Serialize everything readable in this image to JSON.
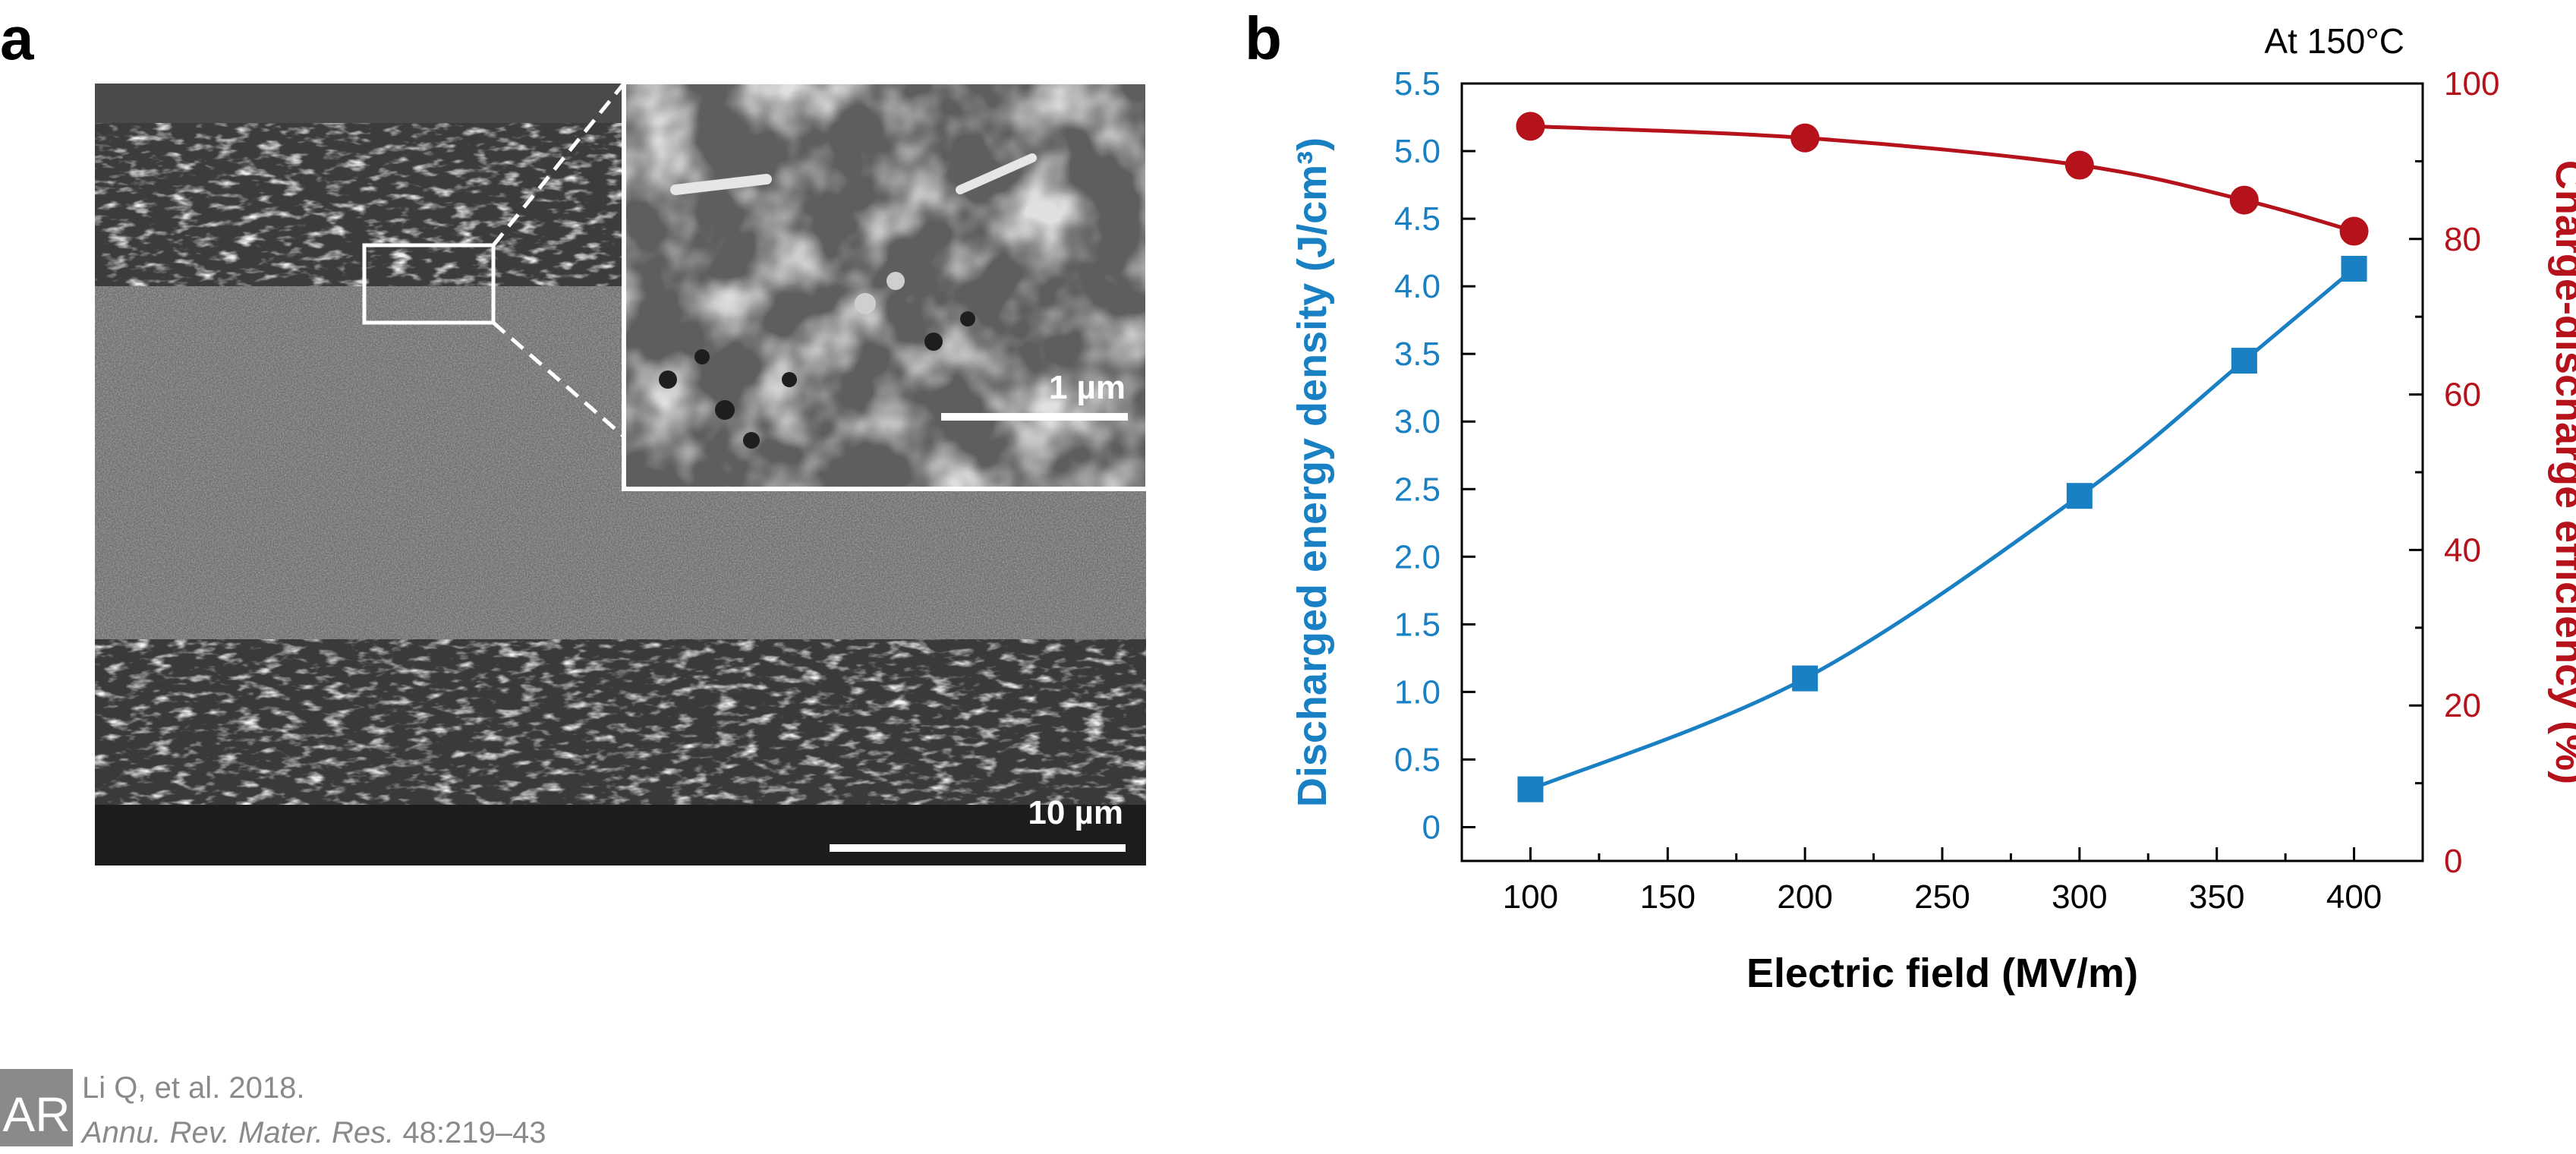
{
  "panel_a": {
    "label": "a",
    "inset_scale": "1 µm",
    "main_scale": "10 µm"
  },
  "panel_b": {
    "label": "b",
    "annotation": "At 150°C"
  },
  "chart_data": {
    "type": "line",
    "xlabel": "Electric field (MV/m)",
    "ylabel": "Discharged energy density (J/cm³)",
    "ylabel_right": "Charge-discharge efficiency (%)",
    "xlim": [
      75,
      425
    ],
    "ylim": [
      -0.25,
      5.5
    ],
    "ylim_right": [
      0,
      100
    ],
    "x_ticks": [
      100,
      150,
      200,
      250,
      300,
      350,
      400
    ],
    "y_ticks": [
      0,
      0.5,
      1.0,
      1.5,
      2.0,
      2.5,
      3.0,
      3.5,
      4.0,
      4.5,
      5.0,
      5.5
    ],
    "y_tick_labels": [
      "0",
      "0.5",
      "1.0",
      "1.5",
      "2.0",
      "2.5",
      "3.0",
      "3.5",
      "4.0",
      "4.5",
      "5.0",
      "5.5"
    ],
    "y_right_ticks": [
      0,
      20,
      40,
      60,
      80,
      100
    ],
    "grid": false,
    "series": [
      {
        "axis": "left",
        "marker": "square",
        "color": "#1a80c4",
        "x": [
          100,
          200,
          300,
          360,
          400
        ],
        "values": [
          0.28,
          1.1,
          2.45,
          3.45,
          4.13
        ]
      },
      {
        "axis": "right",
        "marker": "circle",
        "color": "#b5121b",
        "x": [
          100,
          200,
          300,
          360,
          400
        ],
        "values": [
          94.5,
          93.0,
          89.5,
          85.0,
          81.0
        ]
      }
    ]
  },
  "colors": {
    "energy": "#1a80c4",
    "efficiency": "#b5121b",
    "credit_gray": "#8a8a8a"
  },
  "credit": {
    "logo": "AR",
    "line1": "Li Q, et al. 2018.",
    "journal": "Annu. Rev. Mater. Res.",
    "pages": " 48:219–43"
  }
}
